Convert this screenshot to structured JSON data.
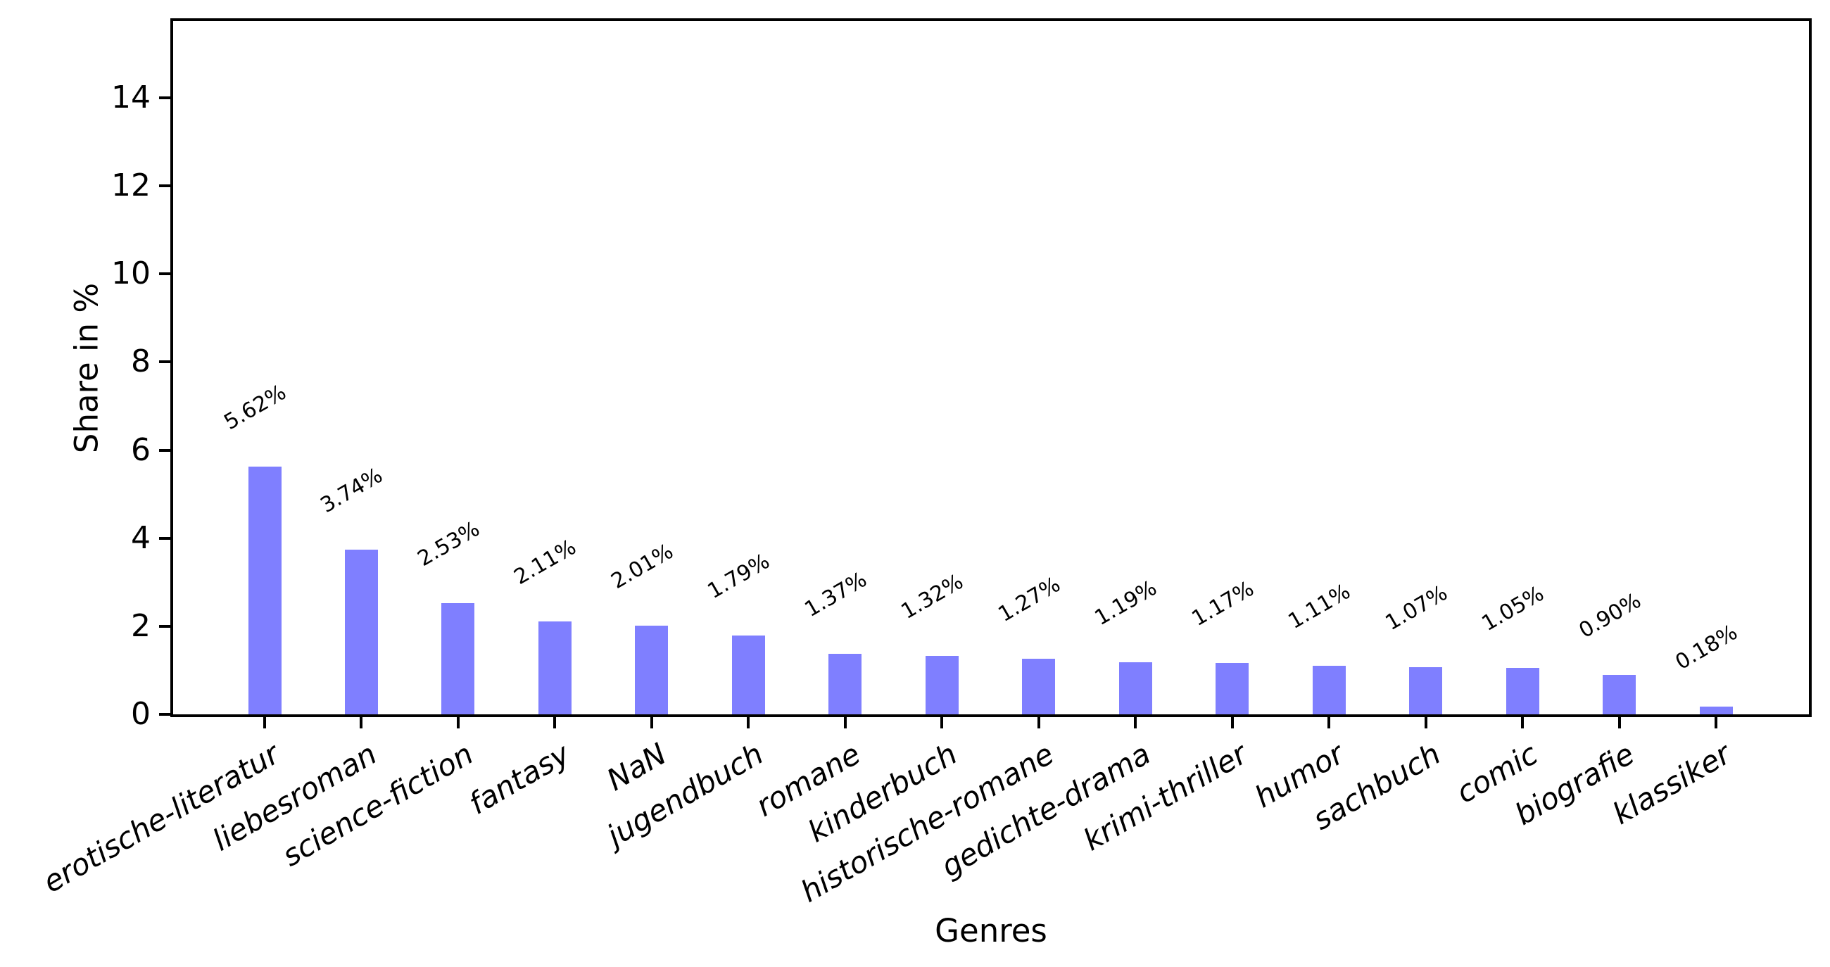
{
  "chart_data": {
    "type": "bar",
    "title": "",
    "xlabel": "Genres",
    "ylabel": "Share in %",
    "categories": [
      "erotische-literatur",
      "liebesroman",
      "science-fiction",
      "fantasy",
      "NaN",
      "jugendbuch",
      "romane",
      "kinderbuch",
      "historische-romane",
      "gedichte-drama",
      "krimi-thriller",
      "humor",
      "sachbuch",
      "comic",
      "biografie",
      "klassiker"
    ],
    "values": [
      5.62,
      3.74,
      2.53,
      2.11,
      2.01,
      1.79,
      1.37,
      1.32,
      1.27,
      1.19,
      1.17,
      1.11,
      1.07,
      1.05,
      0.9,
      0.18
    ],
    "value_labels": [
      "5.62%",
      "3.74%",
      "2.53%",
      "2.11%",
      "2.01%",
      "1.79%",
      "1.37%",
      "1.32%",
      "1.27%",
      "1.19%",
      "1.17%",
      "1.11%",
      "1.07%",
      "1.05%",
      "0.90%",
      "0.18%"
    ],
    "yticks": [
      0,
      2,
      4,
      6,
      8,
      10,
      12,
      14
    ],
    "ylim": [
      0,
      15.8
    ],
    "grid": false,
    "legend": null,
    "bar_color": "#7f7fff",
    "axis_color": "#000000",
    "background_color": "#ffffff",
    "x_label_rotation_deg": 30,
    "value_label_rotation_deg": 30
  }
}
